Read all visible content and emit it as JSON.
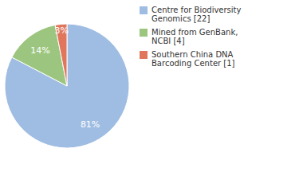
{
  "chart_data": {
    "type": "pie",
    "categories": [
      "Centre for Biodiversity Genomics [22]",
      "Mined from GenBank, NCBI [4]",
      "Southern China DNA Barcoding Center [1]"
    ],
    "values": [
      81,
      14,
      3
    ],
    "value_labels": [
      "81%",
      "14%",
      "3%"
    ],
    "colors": [
      "#9fbde2",
      "#9cc67f",
      "#e0775d"
    ],
    "data_labels": true,
    "legend": "top-right"
  }
}
